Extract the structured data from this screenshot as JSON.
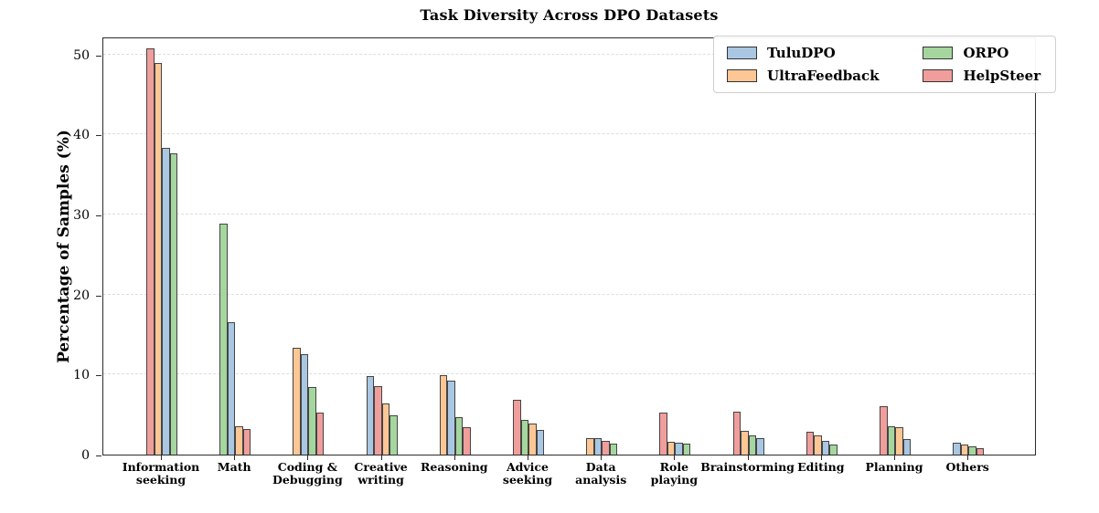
{
  "chart_data": {
    "type": "bar",
    "title": "Task Diversity Across DPO Datasets",
    "ylabel": "Percentage of Samples (%)",
    "xlabel": "",
    "ylim": [
      0,
      52.25
    ],
    "yticks": [
      0,
      10,
      20,
      30,
      40,
      50
    ],
    "grid": "horizontal dashed light-gray lines at each major y tick",
    "legend_position": "upper right, 2 columns (TuluDPO/UltraFeedback in col 1, ORPO/HelpSteer in col 2)",
    "bar_order_note": "bars within each category group are drawn in descending value order",
    "frame": "full box around plot area",
    "categories": [
      {
        "label": "Information seeking",
        "lines": [
          "Information",
          "seeking"
        ]
      },
      {
        "label": "Math",
        "lines": [
          "Math"
        ]
      },
      {
        "label": "Coding & Debugging",
        "lines": [
          "Coding &",
          "Debugging"
        ]
      },
      {
        "label": "Creative writing",
        "lines": [
          "Creative",
          "writing"
        ]
      },
      {
        "label": "Reasoning",
        "lines": [
          "Reasoning"
        ]
      },
      {
        "label": "Advice seeking",
        "lines": [
          "Advice",
          "seeking"
        ]
      },
      {
        "label": "Data analysis",
        "lines": [
          "Data",
          "analysis"
        ]
      },
      {
        "label": "Role playing",
        "lines": [
          "Role",
          "playing"
        ]
      },
      {
        "label": "Brainstorming",
        "lines": [
          "Brainstorming"
        ]
      },
      {
        "label": "Editing",
        "lines": [
          "Editing"
        ]
      },
      {
        "label": "Planning",
        "lines": [
          "Planning"
        ]
      },
      {
        "label": "Others",
        "lines": [
          "Others"
        ]
      }
    ],
    "series": [
      {
        "name": "TuluDPO",
        "color": "#a9c7e2",
        "edge_color": "#444444",
        "values": [
          38.3,
          16.6,
          12.5,
          9.8,
          9.2,
          3.1,
          2.0,
          1.5,
          2.1,
          1.7,
          1.9,
          1.5
        ]
      },
      {
        "name": "UltraFeedback",
        "color": "#fcc795",
        "edge_color": "#444444",
        "values": [
          49.0,
          3.5,
          13.4,
          6.4,
          9.9,
          3.9,
          2.1,
          1.6,
          3.0,
          2.4,
          3.4,
          1.3
        ]
      },
      {
        "name": "ORPO",
        "color": "#a5d69e",
        "edge_color": "#444444",
        "values": [
          37.7,
          28.9,
          8.5,
          4.9,
          4.7,
          4.3,
          1.4,
          1.4,
          2.4,
          1.2,
          3.5,
          1.0
        ]
      },
      {
        "name": "HelpSteer",
        "color": "#f09e9c",
        "edge_color": "#444444",
        "values": [
          50.8,
          3.2,
          5.3,
          8.6,
          3.4,
          6.8,
          1.7,
          5.2,
          5.4,
          2.8,
          6.0,
          0.8
        ]
      }
    ]
  }
}
